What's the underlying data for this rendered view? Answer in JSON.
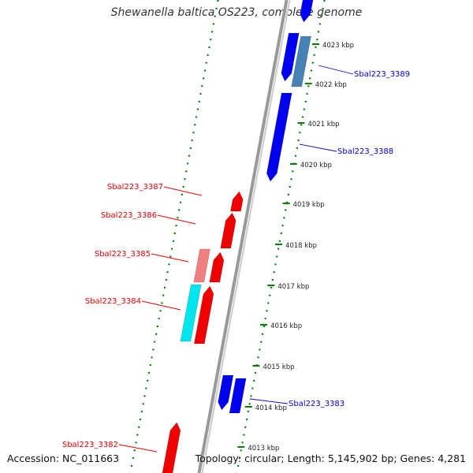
{
  "title": "Shewanella baltica OS223, complete genome",
  "footer": {
    "accession": "Accession: NC_011663",
    "topology": "Topology: circular; Length: 5,145,902 bp; Genes: 4,281"
  },
  "colors": {
    "forward_strand": "#0000ee",
    "forward_strand_alt": "#4682b4",
    "reverse_strand": "#ee0000",
    "reverse_strand_alt": "#f08080",
    "reverse_strand_special": "#00e5ee",
    "backbone": "#999999",
    "tick": "#008000"
  },
  "ticks": [
    {
      "label": "4023 kbp"
    },
    {
      "label": "4022 kbp"
    },
    {
      "label": "4021 kbp"
    },
    {
      "label": "4020 kbp"
    },
    {
      "label": "4019 kbp"
    },
    {
      "label": "4018 kbp"
    },
    {
      "label": "4017 kbp"
    },
    {
      "label": "4016 kbp"
    },
    {
      "label": "4015 kbp"
    },
    {
      "label": "4014 kbp"
    },
    {
      "label": "4013 kbp"
    }
  ],
  "gene_labels": [
    {
      "name": "Sbal223_3389",
      "strand": "forward"
    },
    {
      "name": "Sbal223_3388",
      "strand": "forward"
    },
    {
      "name": "Sbal223_3387",
      "strand": "reverse"
    },
    {
      "name": "Sbal223_3386",
      "strand": "reverse"
    },
    {
      "name": "Sbal223_3385",
      "strand": "reverse"
    },
    {
      "name": "Sbal223_3384",
      "strand": "reverse"
    },
    {
      "name": "Sbal223_3383",
      "strand": "forward"
    },
    {
      "name": "Sbal223_3382",
      "strand": "reverse"
    }
  ]
}
